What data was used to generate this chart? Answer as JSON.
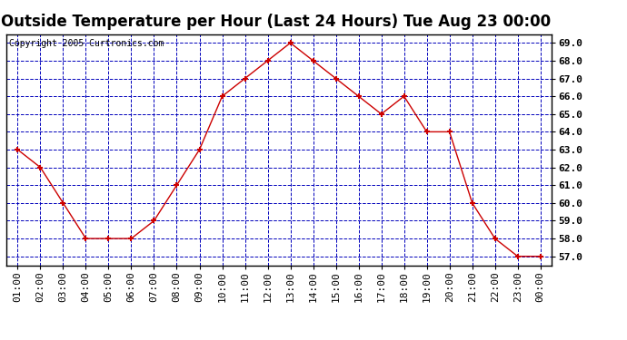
{
  "title": "Outside Temperature per Hour (Last 24 Hours) Tue Aug 23 00:00",
  "copyright": "Copyright 2005 Curtronics.com",
  "hours": [
    "01:00",
    "02:00",
    "03:00",
    "04:00",
    "05:00",
    "06:00",
    "07:00",
    "08:00",
    "09:00",
    "10:00",
    "11:00",
    "12:00",
    "13:00",
    "14:00",
    "15:00",
    "16:00",
    "17:00",
    "18:00",
    "19:00",
    "20:00",
    "21:00",
    "22:00",
    "23:00",
    "00:00"
  ],
  "values": [
    63.0,
    62.0,
    60.0,
    58.0,
    58.0,
    58.0,
    59.0,
    61.0,
    63.0,
    66.0,
    67.0,
    68.0,
    69.0,
    68.0,
    67.0,
    66.0,
    65.0,
    66.0,
    64.0,
    64.0,
    60.0,
    58.0,
    57.0,
    57.0
  ],
  "ylim": [
    56.5,
    69.5
  ],
  "yticks": [
    57.0,
    58.0,
    59.0,
    60.0,
    61.0,
    62.0,
    63.0,
    64.0,
    65.0,
    66.0,
    67.0,
    68.0,
    69.0
  ],
  "line_color": "#cc0000",
  "marker_color": "#cc0000",
  "bg_color": "#ffffff",
  "plot_bg_color": "#ffffff",
  "grid_color": "#0000bb",
  "title_fontsize": 12,
  "copyright_fontsize": 7,
  "tick_fontsize": 8
}
